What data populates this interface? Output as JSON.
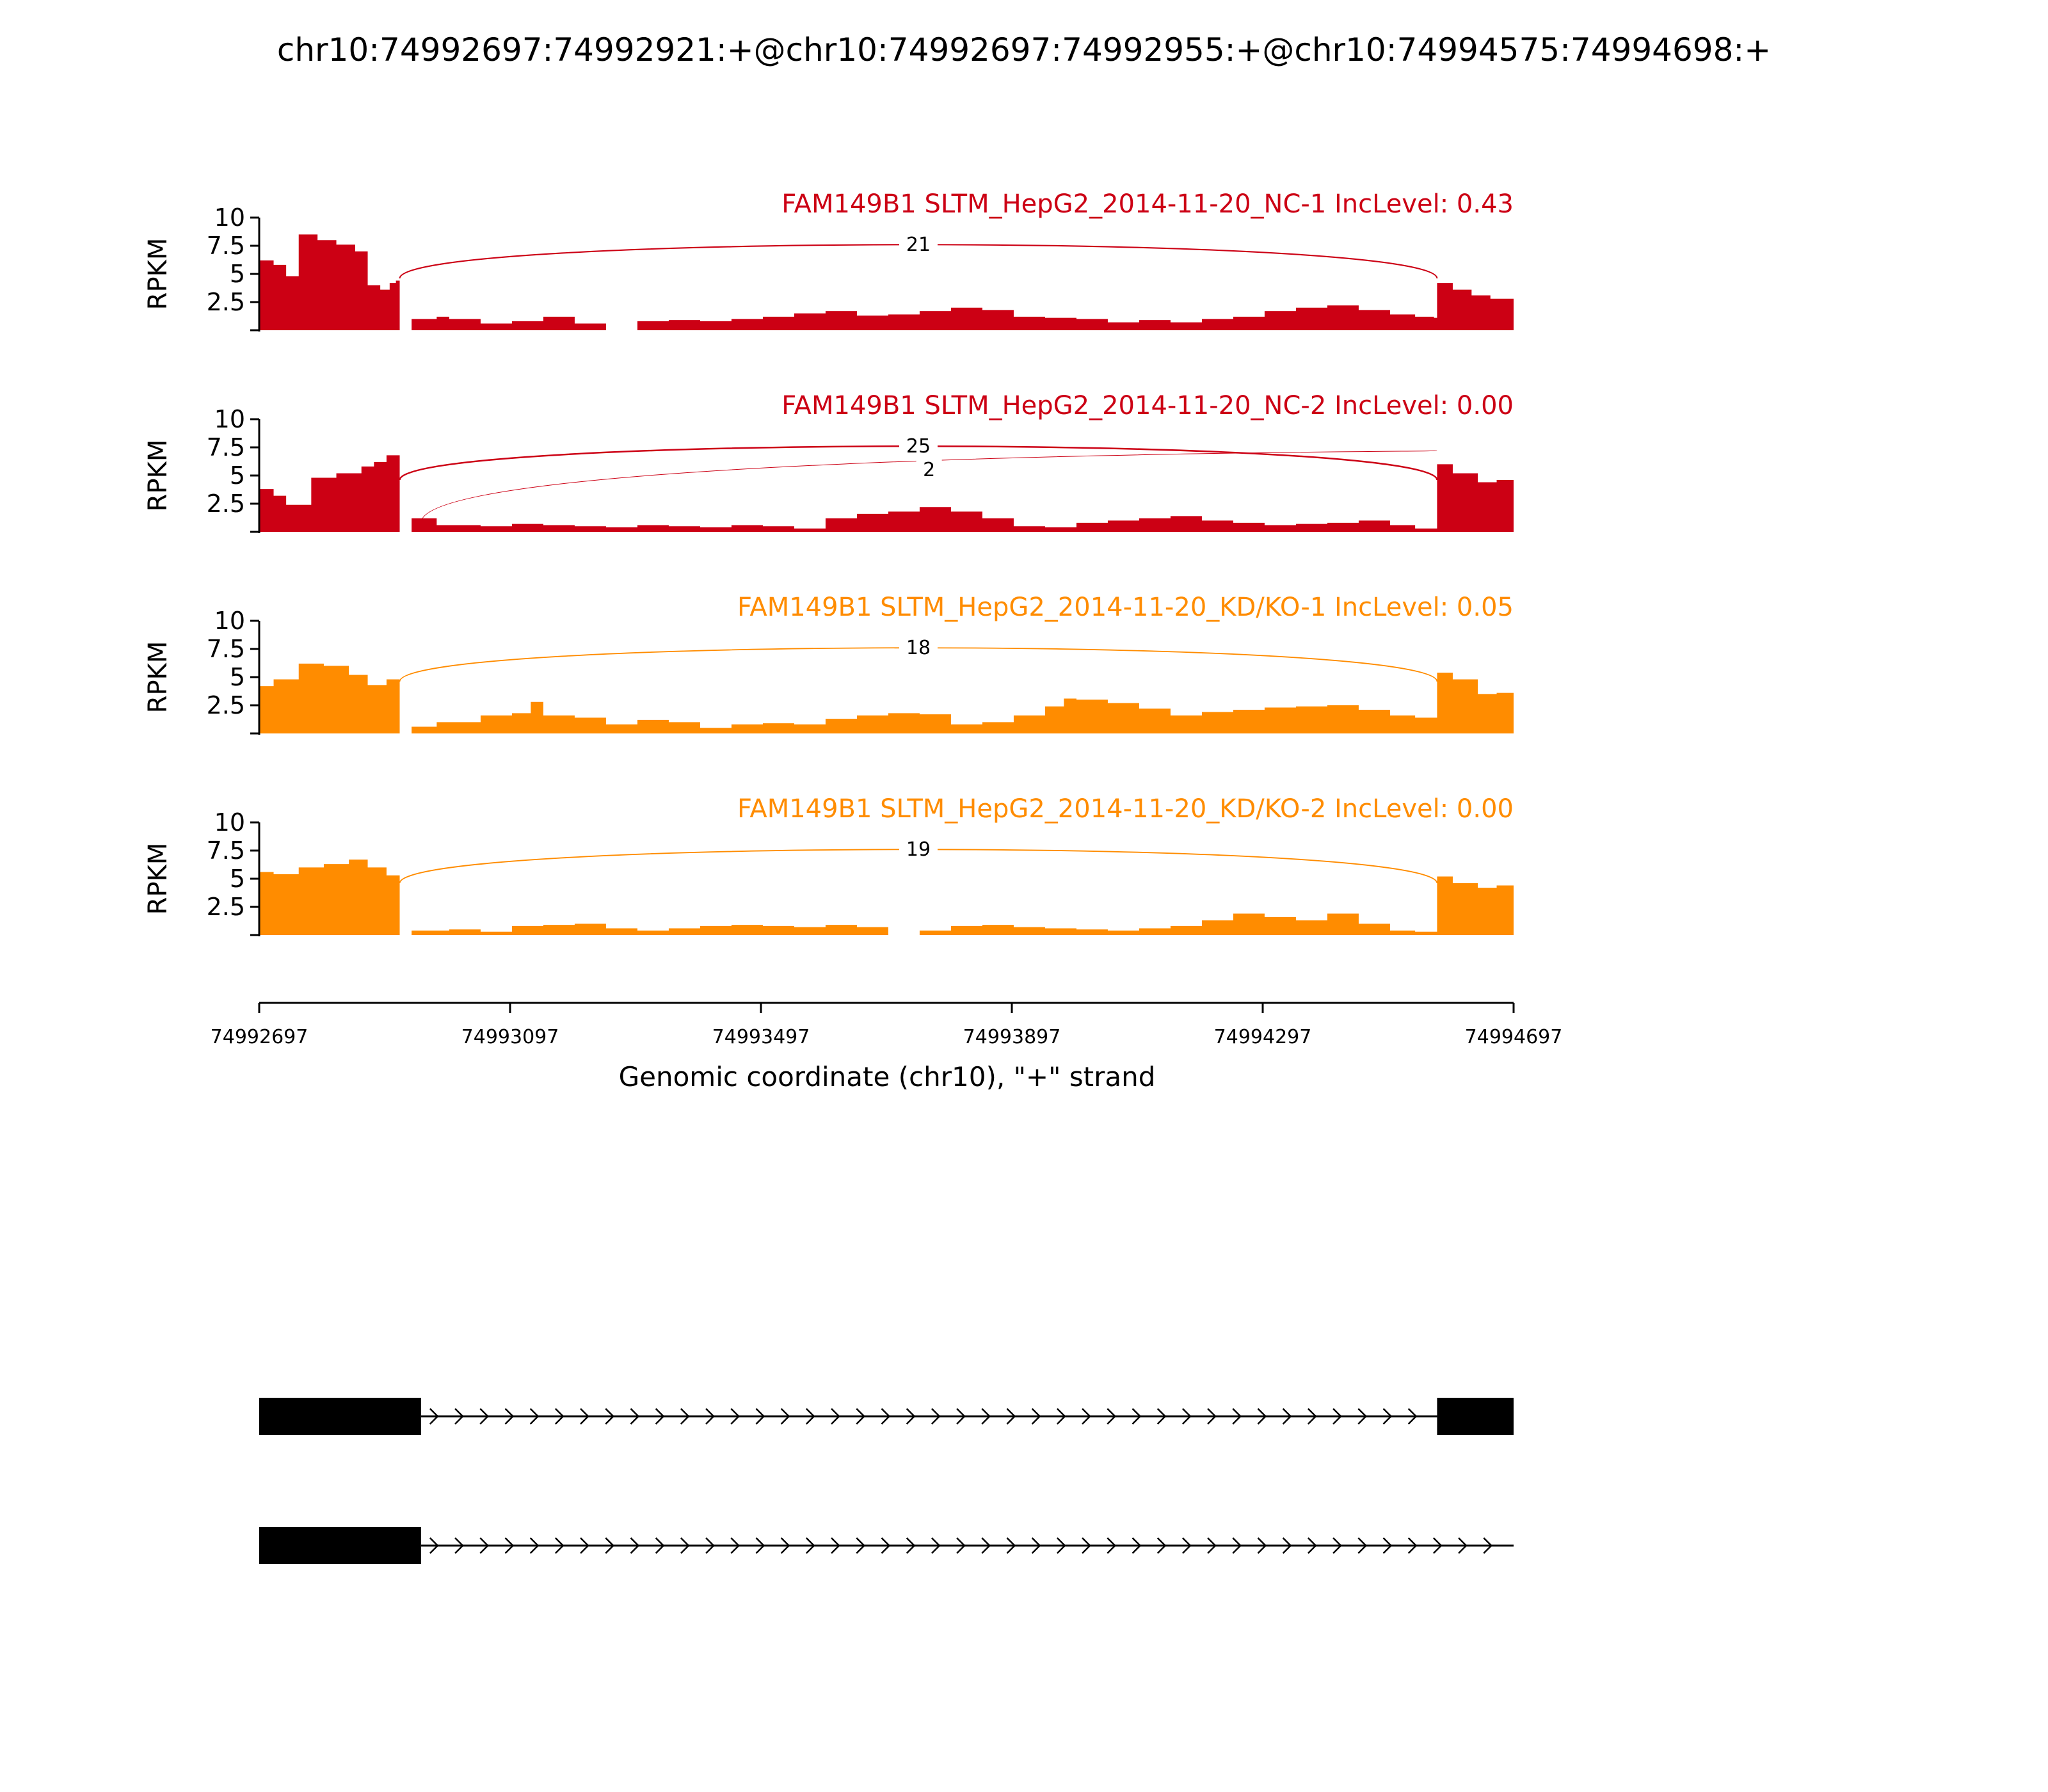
{
  "title": "chr10:74992697:74992921:+@chr10:74992697:74992955:+@chr10:74994575:74994698:+",
  "chart_data": {
    "type": "area",
    "y_label": "RPKM",
    "y_ticks": [
      "2.5",
      "5",
      "7.5",
      "10"
    ],
    "y_tick_values": [
      2.5,
      5,
      7.5,
      10
    ],
    "ylim": [
      0,
      10
    ],
    "xlim": [
      74992697,
      74994697
    ],
    "x_ticks": [
      "74992697",
      "74993097",
      "74993497",
      "74993897",
      "74994297",
      "74994697"
    ],
    "x_tick_values": [
      74992697,
      74993097,
      74993497,
      74993897,
      74994297,
      74994697
    ],
    "x_label": "Genomic coordinate (chr10), \"+\" strand",
    "tracks": [
      {
        "label": "FAM149B1 SLTM_HepG2_2014-11-20_NC-1 IncLevel: 0.43",
        "color": "#CC0014",
        "coverage_x": [
          74992697,
          74992720,
          74992740,
          74992760,
          74992790,
          74992820,
          74992850,
          74992870,
          74992890,
          74992905,
          74992915,
          74992921,
          74992940,
          74992980,
          74993000,
          74993050,
          74993100,
          74993150,
          74993200,
          74993250,
          74993300,
          74993350,
          74993400,
          74993450,
          74993500,
          74993550,
          74993600,
          74993650,
          74993700,
          74993750,
          74993800,
          74993850,
          74993900,
          74993950,
          74994000,
          74994050,
          74994100,
          74994150,
          74994200,
          74994250,
          74994300,
          74994350,
          74994400,
          74994450,
          74994500,
          74994540,
          74994570,
          74994575,
          74994600,
          74994630,
          74994660,
          74994697
        ],
        "coverage_y": [
          6.2,
          5.8,
          4.8,
          8.5,
          8.0,
          7.6,
          7.0,
          4.0,
          3.6,
          4.2,
          4.4,
          0.0,
          1.0,
          1.2,
          1.0,
          0.6,
          0.8,
          1.2,
          0.6,
          0.0,
          0.8,
          0.9,
          0.8,
          1.0,
          1.2,
          1.5,
          1.7,
          1.3,
          1.4,
          1.7,
          2.0,
          1.8,
          1.2,
          1.1,
          1.0,
          0.7,
          0.9,
          0.7,
          1.0,
          1.2,
          1.7,
          2.0,
          2.2,
          1.8,
          1.4,
          1.2,
          1.1,
          4.2,
          3.6,
          3.1,
          2.8,
          3.0
        ],
        "junctions": [
          {
            "start": 74992921,
            "end": 74994575,
            "count": 21,
            "label": "21"
          }
        ]
      },
      {
        "label": "FAM149B1 SLTM_HepG2_2014-11-20_NC-2 IncLevel: 0.00",
        "color": "#CC0014",
        "coverage_x": [
          74992697,
          74992720,
          74992740,
          74992780,
          74992820,
          74992860,
          74992880,
          74992900,
          74992921,
          74992940,
          74992980,
          74993050,
          74993100,
          74993150,
          74993200,
          74993250,
          74993300,
          74993350,
          74993400,
          74993450,
          74993500,
          74993550,
          74993600,
          74993650,
          74993700,
          74993750,
          74993800,
          74993850,
          74993900,
          74993950,
          74994000,
          74994050,
          74994100,
          74994150,
          74994200,
          74994250,
          74994300,
          74994350,
          74994400,
          74994450,
          74994500,
          74994540,
          74994575,
          74994600,
          74994640,
          74994670,
          74994697
        ],
        "coverage_y": [
          3.8,
          3.2,
          2.4,
          4.8,
          5.2,
          5.8,
          6.2,
          6.8,
          0.0,
          1.2,
          0.6,
          0.5,
          0.7,
          0.6,
          0.5,
          0.4,
          0.6,
          0.5,
          0.4,
          0.6,
          0.5,
          0.3,
          1.2,
          1.6,
          1.8,
          2.2,
          1.8,
          1.2,
          0.5,
          0.4,
          0.8,
          1.0,
          1.2,
          1.4,
          1.0,
          0.8,
          0.6,
          0.7,
          0.8,
          1.0,
          0.6,
          0.3,
          6.0,
          5.2,
          4.4,
          4.6,
          5.6
        ],
        "junctions": [
          {
            "start": 74992921,
            "end": 74994575,
            "count": 25,
            "label": "25"
          },
          {
            "start": 74992955,
            "end": 74994575,
            "count": 2,
            "label": "2"
          }
        ]
      },
      {
        "label": "FAM149B1 SLTM_HepG2_2014-11-20_KD/KO-1 IncLevel: 0.05",
        "color": "#FF8C00",
        "coverage_x": [
          74992697,
          74992720,
          74992760,
          74992800,
          74992840,
          74992870,
          74992900,
          74992921,
          74992940,
          74992980,
          74993050,
          74993100,
          74993130,
          74993150,
          74993200,
          74993250,
          74993300,
          74993350,
          74993400,
          74993450,
          74993500,
          74993550,
          74993600,
          74993650,
          74993700,
          74993750,
          74993800,
          74993850,
          74993900,
          74993950,
          74993980,
          74994000,
          74994050,
          74994100,
          74994150,
          74994200,
          74994250,
          74994300,
          74994350,
          74994400,
          74994450,
          74994500,
          74994540,
          74994575,
          74994600,
          74994640,
          74994670,
          74994697
        ],
        "coverage_y": [
          4.2,
          4.8,
          6.2,
          6.0,
          5.2,
          4.3,
          4.8,
          0.0,
          0.6,
          1.0,
          1.6,
          1.8,
          2.8,
          1.6,
          1.4,
          0.8,
          1.2,
          1.0,
          0.5,
          0.8,
          0.9,
          0.8,
          1.3,
          1.6,
          1.8,
          1.7,
          0.8,
          1.0,
          1.6,
          2.4,
          3.1,
          3.0,
          2.7,
          2.2,
          1.6,
          1.9,
          2.1,
          2.3,
          2.4,
          2.5,
          2.1,
          1.6,
          1.4,
          5.4,
          4.8,
          3.5,
          3.6,
          5.4
        ],
        "junctions": [
          {
            "start": 74992921,
            "end": 74994575,
            "count": 18,
            "label": "18"
          }
        ]
      },
      {
        "label": "FAM149B1 SLTM_HepG2_2014-11-20_KD/KO-2 IncLevel: 0.00",
        "color": "#FF8C00",
        "coverage_x": [
          74992697,
          74992720,
          74992760,
          74992800,
          74992840,
          74992870,
          74992900,
          74992921,
          74992940,
          74993000,
          74993050,
          74993100,
          74993150,
          74993200,
          74993250,
          74993300,
          74993350,
          74993400,
          74993450,
          74993500,
          74993550,
          74993600,
          74993650,
          74993700,
          74993750,
          74993800,
          74993850,
          74993900,
          74993950,
          74994000,
          74994050,
          74994100,
          74994150,
          74994200,
          74994250,
          74994300,
          74994350,
          74994400,
          74994450,
          74994500,
          74994540,
          74994575,
          74994600,
          74994640,
          74994670,
          74994697
        ],
        "coverage_y": [
          5.6,
          5.4,
          6.0,
          6.3,
          6.7,
          6.0,
          5.3,
          0.0,
          0.4,
          0.5,
          0.3,
          0.8,
          0.9,
          1.0,
          0.6,
          0.4,
          0.6,
          0.8,
          0.9,
          0.8,
          0.7,
          0.9,
          0.7,
          0.0,
          0.4,
          0.8,
          0.9,
          0.7,
          0.6,
          0.5,
          0.4,
          0.6,
          0.8,
          1.3,
          1.9,
          1.6,
          1.3,
          1.9,
          1.0,
          0.4,
          0.3,
          5.2,
          4.6,
          4.2,
          4.4,
          4.8
        ],
        "junctions": [
          {
            "start": 74992921,
            "end": 74994575,
            "count": 19,
            "label": "19"
          }
        ]
      }
    ],
    "transcripts": [
      {
        "exons": [
          [
            74992697,
            74992955
          ],
          [
            74994575,
            74994697
          ]
        ],
        "intron_from": 74992955,
        "intron_to": 74994575,
        "strand": "+"
      },
      {
        "exons": [
          [
            74992697,
            74992955
          ]
        ],
        "intron_from": 74992955,
        "intron_to": 74994697,
        "strand": "+"
      }
    ]
  }
}
